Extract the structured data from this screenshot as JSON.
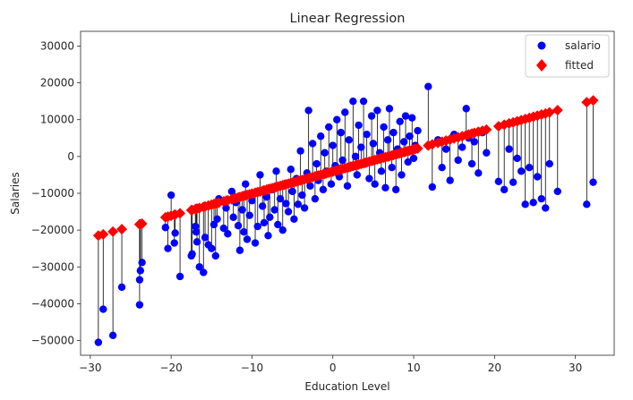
{
  "chart_data": {
    "type": "scatter",
    "title": "Linear Regression",
    "xlabel": "Education Level",
    "ylabel": "Salaries",
    "xlim": [
      -31.2,
      34.8
    ],
    "ylim": [
      -54000,
      34000
    ],
    "xticks": [
      -30,
      -20,
      -10,
      0,
      10,
      20,
      30
    ],
    "xtick_labels": [
      "−30",
      "−20",
      "−10",
      "0",
      "10",
      "20",
      "30"
    ],
    "yticks": [
      -50000,
      -40000,
      -30000,
      -20000,
      -10000,
      0,
      10000,
      20000,
      30000
    ],
    "ytick_labels": [
      "−50000",
      "−40000",
      "−30000",
      "−20000",
      "−10000",
      "0",
      "10000",
      "20000",
      "30000"
    ],
    "grid": false,
    "legend_position": "top-right",
    "colors": {
      "salario": "#0000ff",
      "fitted": "#ff0000",
      "residual": "#000000"
    },
    "regression": {
      "intercept": -4100,
      "slope": 600
    },
    "series": [
      {
        "name": "salario",
        "marker": "circle",
        "points": [
          [
            -29.0,
            -50500
          ],
          [
            -28.4,
            -41500
          ],
          [
            -27.2,
            -48600
          ],
          [
            -26.1,
            -35500
          ],
          [
            -23.9,
            -40300
          ],
          [
            -23.9,
            -33500
          ],
          [
            -23.8,
            -31000
          ],
          [
            -23.6,
            -28800
          ],
          [
            -20.7,
            -19300
          ],
          [
            -20.4,
            -25000
          ],
          [
            -20.0,
            -10500
          ],
          [
            -19.6,
            -23500
          ],
          [
            -19.5,
            -20800
          ],
          [
            -18.9,
            -32600
          ],
          [
            -17.5,
            -27000
          ],
          [
            -17.4,
            -26500
          ],
          [
            -17.0,
            -19000
          ],
          [
            -16.9,
            -20500
          ],
          [
            -16.8,
            -23200
          ],
          [
            -16.5,
            -30000
          ],
          [
            -16.0,
            -31500
          ],
          [
            -15.8,
            -22000
          ],
          [
            -15.4,
            -24000
          ],
          [
            -15.0,
            -25000
          ],
          [
            -14.7,
            -18500
          ],
          [
            -14.5,
            -27000
          ],
          [
            -14.3,
            -17000
          ],
          [
            -14.1,
            -11500
          ],
          [
            -13.5,
            -19500
          ],
          [
            -13.2,
            -14000
          ],
          [
            -13.0,
            -21000
          ],
          [
            -12.5,
            -9500
          ],
          [
            -12.3,
            -16500
          ],
          [
            -12.0,
            -12500
          ],
          [
            -11.7,
            -18800
          ],
          [
            -11.5,
            -25500
          ],
          [
            -11.2,
            -14500
          ],
          [
            -11.0,
            -20500
          ],
          [
            -10.8,
            -7500
          ],
          [
            -10.6,
            -22500
          ],
          [
            -10.3,
            -16000
          ],
          [
            -10.0,
            -12000
          ],
          [
            -9.6,
            -23500
          ],
          [
            -9.3,
            -19000
          ],
          [
            -9.0,
            -5000
          ],
          [
            -8.7,
            -13500
          ],
          [
            -8.5,
            -18000
          ],
          [
            -8.2,
            -11000
          ],
          [
            -8.0,
            -21500
          ],
          [
            -7.8,
            -16500
          ],
          [
            -7.5,
            -9000
          ],
          [
            -7.2,
            -14500
          ],
          [
            -7.0,
            -4000
          ],
          [
            -6.8,
            -18500
          ],
          [
            -6.5,
            -11500
          ],
          [
            -6.2,
            -20000
          ],
          [
            -6.0,
            -7500
          ],
          [
            -5.8,
            -12800
          ],
          [
            -5.5,
            -15000
          ],
          [
            -5.2,
            -3500
          ],
          [
            -5.0,
            -9500
          ],
          [
            -4.8,
            -17000
          ],
          [
            -4.5,
            -6000
          ],
          [
            -4.3,
            -13000
          ],
          [
            -4.0,
            1500
          ],
          [
            -3.8,
            -10500
          ],
          [
            -3.5,
            -14000
          ],
          [
            -3.2,
            -4500
          ],
          [
            -3.0,
            12500
          ],
          [
            -2.8,
            -8000
          ],
          [
            -2.5,
            3500
          ],
          [
            -2.2,
            -11500
          ],
          [
            -2.0,
            -2000
          ],
          [
            -1.8,
            -6500
          ],
          [
            -1.5,
            5500
          ],
          [
            -1.2,
            -9000
          ],
          [
            -1.0,
            1000
          ],
          [
            -0.8,
            -4000
          ],
          [
            -0.5,
            8000
          ],
          [
            -0.2,
            -7500
          ],
          [
            0.0,
            3000
          ],
          [
            0.3,
            -2500
          ],
          [
            0.5,
            10000
          ],
          [
            0.8,
            -5500
          ],
          [
            1.0,
            6500
          ],
          [
            1.2,
            -1000
          ],
          [
            1.5,
            12000
          ],
          [
            1.8,
            -8000
          ],
          [
            2.0,
            4500
          ],
          [
            2.2,
            -3000
          ],
          [
            2.5,
            15000
          ],
          [
            2.8,
            0
          ],
          [
            3.0,
            -5000
          ],
          [
            3.2,
            8500
          ],
          [
            3.5,
            2500
          ],
          [
            3.8,
            15000
          ],
          [
            4.0,
            -2000
          ],
          [
            4.2,
            6000
          ],
          [
            4.5,
            -6000
          ],
          [
            4.8,
            11000
          ],
          [
            5.0,
            3500
          ],
          [
            5.2,
            -7500
          ],
          [
            5.5,
            12500
          ],
          [
            5.8,
            1000
          ],
          [
            6.0,
            -4000
          ],
          [
            6.3,
            8000
          ],
          [
            6.5,
            -8500
          ],
          [
            6.8,
            4500
          ],
          [
            7.0,
            13000
          ],
          [
            7.3,
            -3000
          ],
          [
            7.5,
            6500
          ],
          [
            7.8,
            -9000
          ],
          [
            8.0,
            2000
          ],
          [
            8.3,
            9500
          ],
          [
            8.5,
            -5000
          ],
          [
            8.8,
            4000
          ],
          [
            9.0,
            11000
          ],
          [
            9.3,
            -1500
          ],
          [
            9.5,
            5500
          ],
          [
            9.8,
            10500
          ],
          [
            10.0,
            -500
          ],
          [
            10.2,
            3000
          ],
          [
            10.5,
            7000
          ],
          [
            11.8,
            19000
          ],
          [
            12.3,
            -8300
          ],
          [
            13.0,
            4500
          ],
          [
            13.5,
            -3000
          ],
          [
            14.0,
            2000
          ],
          [
            14.5,
            -6500
          ],
          [
            15.0,
            6000
          ],
          [
            15.5,
            -1000
          ],
          [
            16.0,
            2500
          ],
          [
            16.5,
            13000
          ],
          [
            16.8,
            5000
          ],
          [
            17.2,
            -2000
          ],
          [
            17.5,
            4000
          ],
          [
            18.0,
            -4500
          ],
          [
            18.5,
            6500
          ],
          [
            19.0,
            1000
          ],
          [
            20.5,
            -6800
          ],
          [
            21.2,
            -9000
          ],
          [
            21.8,
            2000
          ],
          [
            22.3,
            -7000
          ],
          [
            22.8,
            -500
          ],
          [
            23.3,
            -4000
          ],
          [
            23.8,
            -13000
          ],
          [
            24.3,
            -3000
          ],
          [
            24.8,
            -12500
          ],
          [
            25.3,
            -5500
          ],
          [
            25.8,
            -11500
          ],
          [
            26.3,
            -14000
          ],
          [
            26.8,
            -2000
          ],
          [
            27.8,
            -9500
          ],
          [
            31.4,
            -13000
          ],
          [
            32.2,
            -7000
          ]
        ]
      },
      {
        "name": "fitted",
        "marker": "diamond"
      }
    ]
  },
  "legend": {
    "entries": [
      {
        "label": "salario",
        "color": "#0000ff",
        "marker": "circle"
      },
      {
        "label": "fitted",
        "color": "#ff0000",
        "marker": "diamond"
      }
    ]
  }
}
